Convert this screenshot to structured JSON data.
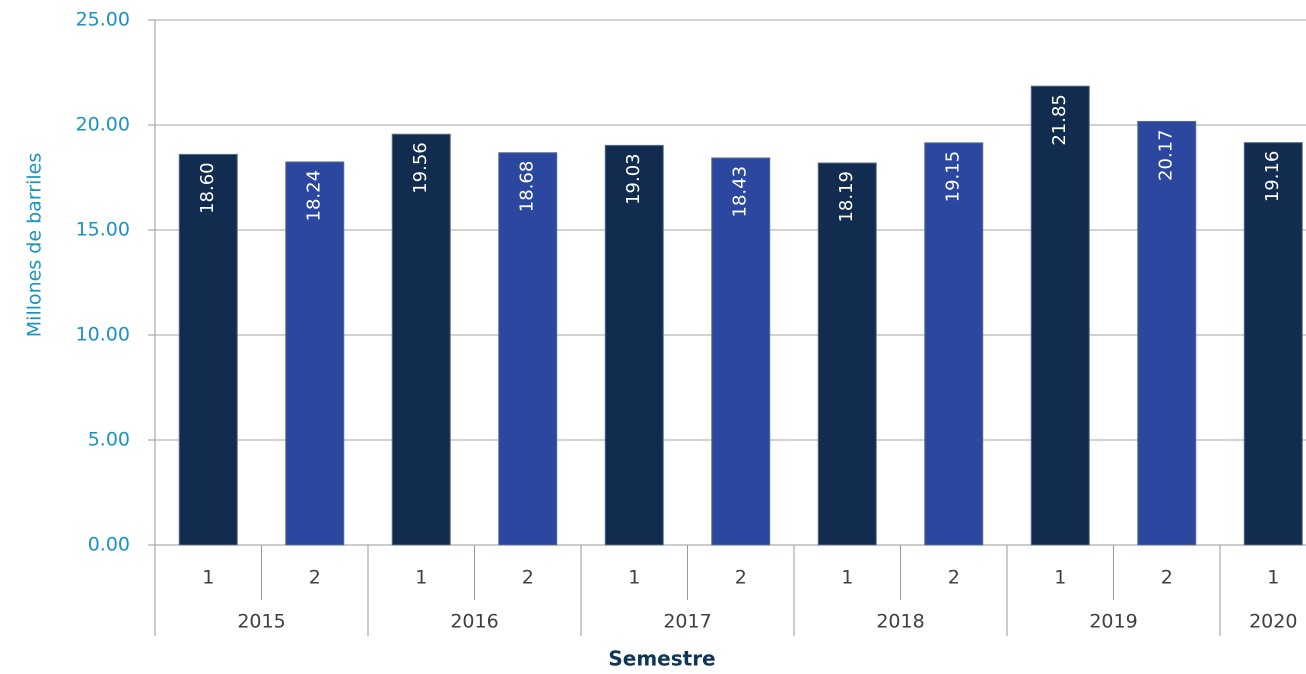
{
  "chart_data": {
    "type": "bar",
    "y_axis_label": "Millones de barriles",
    "x_axis_label": "Semestre",
    "groups": [
      {
        "name": "2015",
        "categories": [
          "1",
          "2"
        ]
      },
      {
        "name": "2016",
        "categories": [
          "1",
          "2"
        ]
      },
      {
        "name": "2017",
        "categories": [
          "1",
          "2"
        ]
      },
      {
        "name": "2018",
        "categories": [
          "1",
          "2"
        ]
      },
      {
        "name": "2019",
        "categories": [
          "1",
          "2"
        ]
      },
      {
        "name": "2020",
        "categories": [
          "1"
        ]
      }
    ],
    "values": [
      18.6,
      18.24,
      19.56,
      18.68,
      19.03,
      18.43,
      18.19,
      19.15,
      21.85,
      20.17,
      19.16
    ],
    "value_labels": [
      "18.60",
      "18.24",
      "19.56",
      "18.68",
      "19.03",
      "18.43",
      "18.19",
      "19.15",
      "21.85",
      "20.17",
      "19.16"
    ],
    "colors": [
      "#112c4f",
      "#2b479f"
    ],
    "ylim": [
      0,
      25
    ],
    "yticks": [
      {
        "value": 0,
        "label": "0.00"
      },
      {
        "value": 5,
        "label": "5.00"
      },
      {
        "value": 10,
        "label": "10.00"
      },
      {
        "value": 15,
        "label": "15.00"
      },
      {
        "value": 20,
        "label": "20.00"
      },
      {
        "value": 25,
        "label": "25.00"
      }
    ],
    "grid": true
  }
}
